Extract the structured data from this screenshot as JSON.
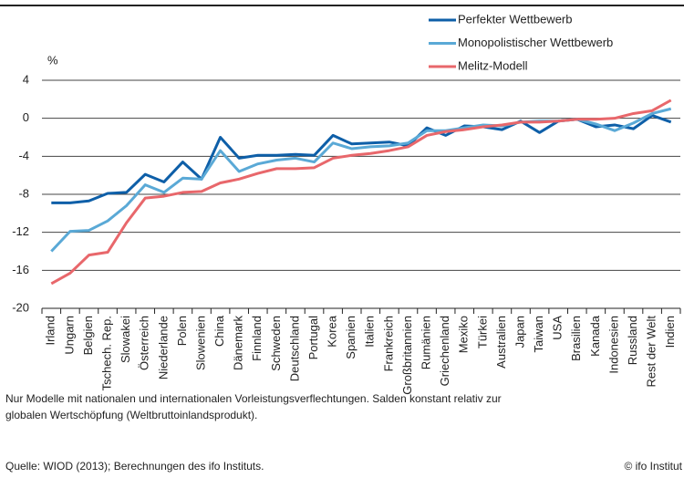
{
  "chart_data": {
    "type": "line",
    "y_label": "%",
    "categories": [
      "Irland",
      "Ungarn",
      "Belgien",
      "Tschech. Rep.",
      "Slowakei",
      "Österreich",
      "Niederlande",
      "Polen",
      "Slowenien",
      "China",
      "Dänemark",
      "Finnland",
      "Schweden",
      "Deutschland",
      "Portugal",
      "Korea",
      "Spanien",
      "Italien",
      "Frankreich",
      "Großbritannien",
      "Rumänien",
      "Griechenland",
      "Mexiko",
      "Türkei",
      "Australien",
      "Japan",
      "Taiwan",
      "USA",
      "Brasilien",
      "Kanada",
      "Indonesien",
      "Russland",
      "Rest der Welt",
      "Indien"
    ],
    "series": [
      {
        "name": "Perfekter Wettbewerb",
        "color": "#0e5fa8",
        "values": [
          -8.9,
          -8.9,
          -8.7,
          -7.9,
          -7.8,
          -5.9,
          -6.7,
          -4.6,
          -6.4,
          -2.0,
          -4.2,
          -3.9,
          -3.9,
          -3.8,
          -3.9,
          -1.8,
          -2.7,
          -2.6,
          -2.5,
          -2.9,
          -1.0,
          -1.8,
          -0.8,
          -0.9,
          -1.2,
          -0.3,
          -1.5,
          -0.3,
          -0.1,
          -0.9,
          -0.7,
          -1.1,
          0.3,
          -0.4
        ]
      },
      {
        "name": "Monopolistischer Wettbewerb",
        "color": "#5aa9d6",
        "values": [
          -14.0,
          -11.9,
          -11.8,
          -10.8,
          -9.2,
          -7.0,
          -7.8,
          -6.3,
          -6.4,
          -3.4,
          -5.6,
          -4.8,
          -4.4,
          -4.2,
          -4.6,
          -2.6,
          -3.2,
          -3.0,
          -2.9,
          -2.6,
          -1.3,
          -1.3,
          -1.0,
          -0.7,
          -0.8,
          -0.4,
          -0.3,
          -0.3,
          -0.1,
          -0.6,
          -1.3,
          -0.5,
          0.5,
          1.0
        ]
      },
      {
        "name": "Melitz-Modell",
        "color": "#e8676b",
        "values": [
          -17.4,
          -16.3,
          -14.4,
          -14.1,
          -11.0,
          -8.4,
          -8.2,
          -7.8,
          -7.7,
          -6.8,
          -6.4,
          -5.8,
          -5.3,
          -5.3,
          -5.2,
          -4.2,
          -3.9,
          -3.7,
          -3.4,
          -3.0,
          -1.8,
          -1.4,
          -1.2,
          -0.9,
          -0.7,
          -0.4,
          -0.4,
          -0.3,
          -0.1,
          -0.1,
          0.0,
          0.5,
          0.8,
          1.9
        ]
      }
    ],
    "ylim": [
      -20,
      4
    ],
    "yticks": [
      4,
      0,
      -4,
      -8,
      -12,
      -16,
      -20
    ],
    "grid": true,
    "note": "Nur Modelle mit nationalen und internationalen Vorleistungsverflechtungen. Salden konstant relativ zur",
    "note2": "globalen Wertschöpfung (Weltbruttoinlandsprodukt).",
    "source": "Quelle: WIOD (2013); Berechnungen des ifo Instituts.",
    "copyright": "© ifo Institut"
  }
}
